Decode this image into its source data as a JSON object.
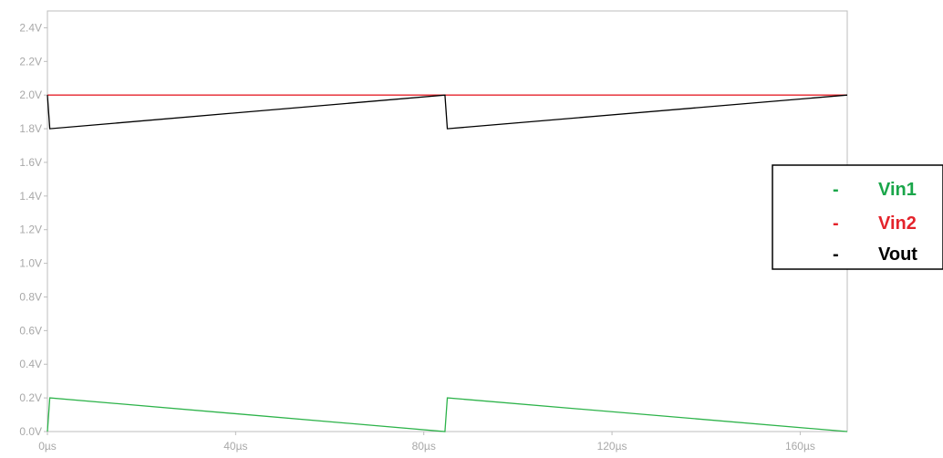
{
  "chart_data": {
    "type": "line",
    "title": "",
    "xlabel": "",
    "ylabel": "",
    "xlim": [
      0,
      170
    ],
    "ylim": [
      0,
      2.5
    ],
    "grid": false,
    "legend_position": "right",
    "x_ticks": [
      0,
      40,
      80,
      120,
      160
    ],
    "x_tick_labels": [
      "0µs",
      "40µs",
      "80µs",
      "120µs",
      "160µs"
    ],
    "y_ticks": [
      0,
      0.2,
      0.4,
      0.6,
      0.8,
      1.0,
      1.2,
      1.4,
      1.6,
      1.8,
      2.0,
      2.2,
      2.4
    ],
    "y_tick_labels": [
      "0.0V",
      "0.2V",
      "0.4V",
      "0.6V",
      "0.8V",
      "1.0V",
      "1.2V",
      "1.4V",
      "1.6V",
      "1.8V",
      "2.0V",
      "2.2V",
      "2.4V"
    ],
    "series": [
      {
        "name": "Vin1",
        "color": "#2db34a",
        "x": [
          0,
          0.5,
          84.5,
          85,
          170
        ],
        "y": [
          0.0,
          0.2,
          0.0,
          0.2,
          0.0
        ]
      },
      {
        "name": "Vin2",
        "color": "#e4232b",
        "x": [
          0,
          170
        ],
        "y": [
          2.0,
          2.0
        ]
      },
      {
        "name": "Vout",
        "color": "#000000",
        "x": [
          0,
          0.5,
          84.5,
          85,
          170
        ],
        "y": [
          2.0,
          1.8,
          2.0,
          1.8,
          2.0
        ]
      }
    ],
    "legend": [
      {
        "marker": "-",
        "label": "Vin1",
        "color": "#1aa64a"
      },
      {
        "marker": "-",
        "label": "Vin2",
        "color": "#e4232b"
      },
      {
        "marker": "-",
        "label": "Vout",
        "color": "#000000"
      }
    ]
  }
}
